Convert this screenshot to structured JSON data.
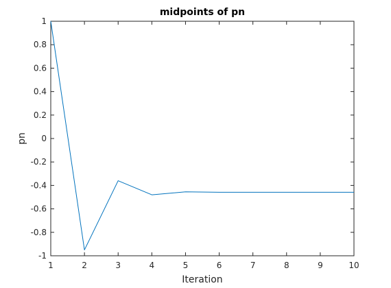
{
  "chart_data": {
    "type": "line",
    "title": "midpoints of pn",
    "xlabel": "Iteration",
    "ylabel": "pn",
    "xlim": [
      1,
      10
    ],
    "ylim": [
      -1,
      1
    ],
    "xticks": [
      1,
      2,
      3,
      4,
      5,
      6,
      7,
      8,
      9,
      10
    ],
    "yticks": [
      -1,
      -0.8,
      -0.6,
      -0.4,
      -0.2,
      0,
      0.2,
      0.4,
      0.6,
      0.8,
      1
    ],
    "grid": false,
    "x": [
      1,
      2,
      3,
      4,
      5,
      6,
      7,
      8,
      9,
      10
    ],
    "series": [
      {
        "color": "#0072bd",
        "values": [
          1,
          -0.95,
          -0.36,
          -0.48,
          -0.455,
          -0.458,
          -0.458,
          -0.458,
          -0.458,
          -0.458
        ]
      }
    ]
  }
}
